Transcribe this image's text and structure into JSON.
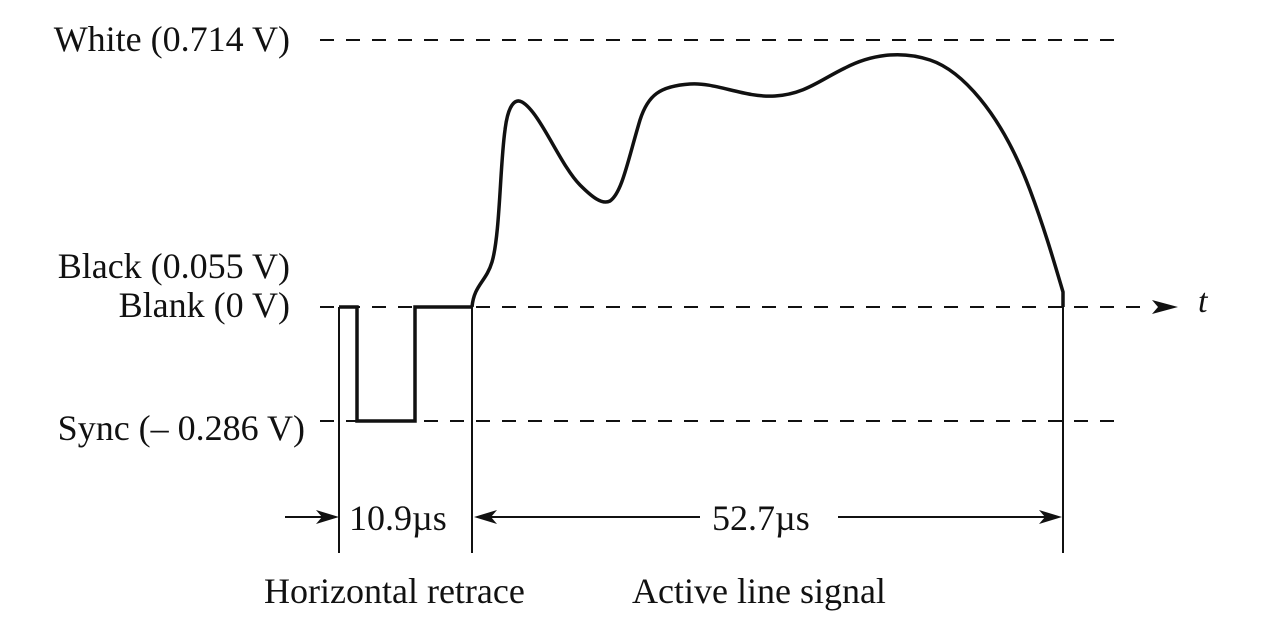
{
  "levels": {
    "white": "White (0.714 V)",
    "black": "Black (0.055 V)",
    "blank": "Blank (0 V)",
    "sync": "Sync (–  0.286 V)"
  },
  "axis_label": "t",
  "durations": {
    "retrace": "10.9µs",
    "active": "52.7µs"
  },
  "sections": {
    "retrace": "Horizontal retrace",
    "active": "Active line signal"
  }
}
